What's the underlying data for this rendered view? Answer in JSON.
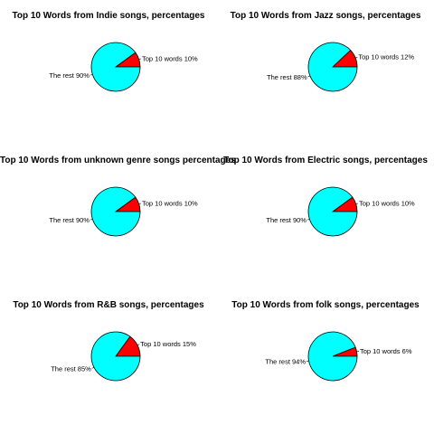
{
  "colors": {
    "top": "#ff0000",
    "rest": "#00ffff"
  },
  "chart_data": [
    {
      "type": "pie",
      "title": "Top 10 Words from Indie songs, percentages",
      "slices": [
        {
          "label": "Top 10 words 10%",
          "value": 10,
          "color": "#ff0000"
        },
        {
          "label": "The rest 90%",
          "value": 90,
          "color": "#00ffff"
        }
      ]
    },
    {
      "type": "pie",
      "title": "Top 10 Words from Jazz songs, percentages",
      "slices": [
        {
          "label": "Top 10 words 12%",
          "value": 12,
          "color": "#ff0000"
        },
        {
          "label": "The rest 88%",
          "value": 88,
          "color": "#00ffff"
        }
      ]
    },
    {
      "type": "pie",
      "title": "Top 10 Words from unknown genre songs percentages",
      "slices": [
        {
          "label": "Top 10 words 10%",
          "value": 10,
          "color": "#ff0000"
        },
        {
          "label": "The rest 90%",
          "value": 90,
          "color": "#00ffff"
        }
      ]
    },
    {
      "type": "pie",
      "title": "Top 10 Words from Electric songs, percentages",
      "slices": [
        {
          "label": "Top 10 words 10%",
          "value": 10,
          "color": "#ff0000"
        },
        {
          "label": "The rest 90%",
          "value": 90,
          "color": "#00ffff"
        }
      ]
    },
    {
      "type": "pie",
      "title": "Top 10 Words from R&B songs, percentages",
      "slices": [
        {
          "label": "Top 10 words 15%",
          "value": 15,
          "color": "#ff0000"
        },
        {
          "label": "The rest 85%",
          "value": 85,
          "color": "#00ffff"
        }
      ]
    },
    {
      "type": "pie",
      "title": "Top 10 Words from folk songs, percentages",
      "slices": [
        {
          "label": "Top 10 words 6%",
          "value": 6,
          "color": "#ff0000"
        },
        {
          "label": "The rest 94%",
          "value": 94,
          "color": "#00ffff"
        }
      ]
    }
  ]
}
